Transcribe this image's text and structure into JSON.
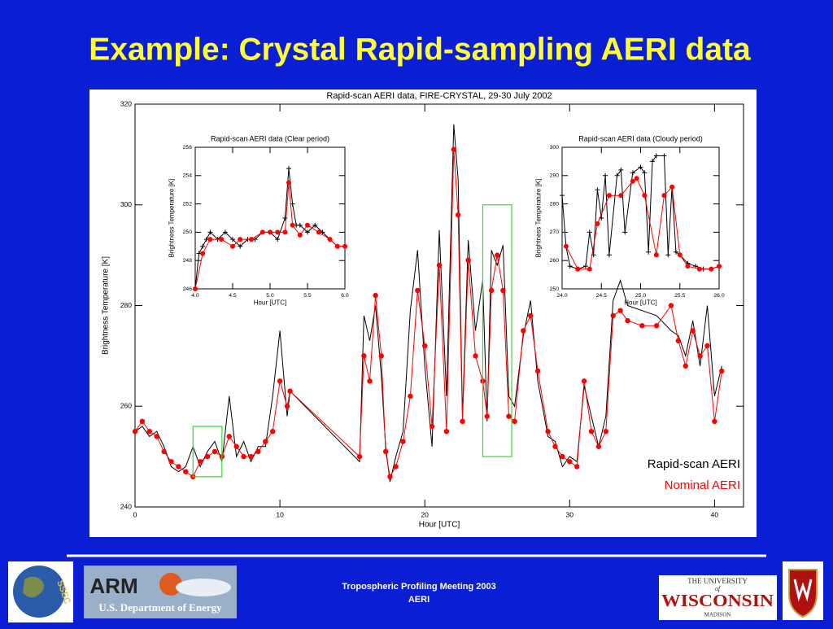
{
  "title": "Example: Crystal Rapid-sampling AERI data",
  "chart_data": [
    {
      "type": "line",
      "title": "Rapid-scan AERI data, FIRE-CRYSTAL, 29-30 July 2002",
      "x_label": "Hour [UTC]",
      "y_label": "Brightness Temperature [K]",
      "xlim": [
        0,
        42
      ],
      "ylim": [
        240,
        320
      ],
      "xticks": [
        0,
        10,
        20,
        30,
        40
      ],
      "yticks": [
        240,
        260,
        280,
        300,
        320
      ],
      "legend": "lower right",
      "x": [
        0,
        0.5,
        1,
        1.5,
        2,
        2.5,
        3,
        3.5,
        4,
        4.5,
        5,
        5.5,
        6,
        6.5,
        7,
        7.5,
        8,
        8.5,
        9,
        9.5,
        10,
        10.5,
        10.7,
        15.5,
        15.8,
        16.2,
        16.6,
        17,
        17.3,
        17.6,
        18,
        18.5,
        19,
        19.5,
        20,
        20.5,
        21,
        21.5,
        22,
        22.3,
        22.6,
        23,
        23.5,
        24,
        24.3,
        24.6,
        25,
        25.4,
        25.8,
        26.2,
        26.8,
        27.3,
        27.8,
        28.5,
        29,
        29.5,
        30,
        30.5,
        31,
        31.5,
        32,
        32.5,
        33,
        33.5,
        34,
        35,
        36,
        37,
        37.5,
        38,
        38.5,
        39,
        39.5,
        40,
        40.5
      ],
      "series": [
        {
          "name": "Rapid-scan AERI",
          "color": "#000000",
          "marker": "none",
          "values": [
            255,
            256,
            254,
            255,
            252,
            248,
            247,
            248,
            252,
            248,
            251,
            253,
            249,
            262,
            250,
            253,
            249,
            252,
            252,
            262,
            275,
            258,
            263,
            249,
            278,
            273,
            280,
            266,
            252,
            245,
            250,
            255,
            279,
            291,
            268,
            252,
            295,
            262,
            316,
            305,
            258,
            293,
            275,
            285,
            257,
            291,
            288,
            292,
            262,
            260,
            274,
            281,
            265,
            254,
            253,
            248,
            250,
            249,
            264,
            258,
            252,
            258,
            281,
            285,
            280,
            279,
            278,
            275,
            274,
            270,
            277,
            268,
            280,
            262,
            268
          ]
        },
        {
          "name": "Nominal AERI",
          "color": "#ff0000",
          "marker": "circle",
          "values": [
            255,
            257,
            255,
            254,
            251,
            249,
            248,
            247,
            246,
            249,
            250,
            251,
            250,
            254,
            252,
            250,
            250,
            251,
            253,
            255,
            265,
            260,
            263,
            250,
            270,
            265,
            282,
            270,
            251,
            246,
            248,
            253,
            262,
            283,
            272,
            256,
            288,
            255,
            311,
            298,
            257,
            289,
            270,
            265,
            258,
            283,
            290,
            283,
            258,
            257,
            275,
            278,
            267,
            255,
            252,
            250,
            249,
            248,
            265,
            255,
            252,
            255,
            278,
            279,
            277,
            276,
            276,
            280,
            273,
            268,
            275,
            270,
            272,
            257,
            267
          ]
        }
      ]
    },
    {
      "type": "line",
      "title": "Rapid-scan AERI data (Clear period)",
      "x_label": "Hour [UTC]",
      "y_label": "Brightness Temperature [K]",
      "xlim": [
        4,
        6
      ],
      "ylim": [
        246,
        256
      ],
      "xticks": [
        {
          "value": 4,
          "label": "4.0"
        },
        4.5,
        {
          "value": 5,
          "label": "5.0"
        },
        5.5,
        {
          "value": 6,
          "label": "6.0"
        }
      ],
      "yticks": [
        246,
        248,
        250,
        252,
        254,
        256
      ],
      "series": [
        {
          "color": "#000000",
          "marker": "plus",
          "x": [
            4.0,
            4.05,
            4.1,
            4.15,
            4.2,
            4.3,
            4.4,
            4.5,
            4.6,
            4.7,
            4.8,
            4.9,
            5.0,
            5.1,
            5.2,
            5.25,
            5.3,
            5.35,
            5.4,
            5.5,
            5.6,
            5.7,
            5.8,
            5.9,
            6.0
          ],
          "values": [
            246,
            248.5,
            249,
            249.5,
            250,
            249.5,
            250,
            249.5,
            249,
            249.5,
            249.5,
            250,
            250,
            249.5,
            251,
            254.5,
            252,
            250.5,
            250.5,
            250,
            250.5,
            250,
            249.5,
            249,
            249
          ]
        },
        {
          "color": "#ff0000",
          "marker": "circle",
          "x": [
            4.0,
            4.1,
            4.2,
            4.35,
            4.5,
            4.6,
            4.75,
            4.9,
            5.0,
            5.1,
            5.2,
            5.25,
            5.3,
            5.4,
            5.5,
            5.65,
            5.8,
            5.9,
            6.0
          ],
          "values": [
            246,
            248.5,
            249.5,
            249.5,
            249,
            249.5,
            249.5,
            250,
            250,
            250,
            250,
            253.5,
            250.5,
            249.8,
            250.5,
            250,
            249.5,
            249,
            249
          ]
        }
      ]
    },
    {
      "type": "line",
      "title": "Rapid-scan AERI data (Cloudy period)",
      "x_label": "Hour [UTC]",
      "y_label": "Brightness Temperature [K]",
      "xlim": [
        24,
        26
      ],
      "ylim": [
        250,
        300
      ],
      "xticks": [
        {
          "value": 24,
          "label": "24.0"
        },
        24.5,
        {
          "value": 25,
          "label": "25.0"
        },
        25.5,
        {
          "value": 26,
          "label": "26.0"
        }
      ],
      "yticks": [
        250,
        260,
        270,
        280,
        290,
        300
      ],
      "series": [
        {
          "color": "#000000",
          "marker": "plus",
          "x": [
            24,
            24.05,
            24.1,
            24.2,
            24.3,
            24.35,
            24.4,
            24.45,
            24.5,
            24.55,
            24.6,
            24.7,
            24.75,
            24.8,
            24.9,
            25.0,
            25.05,
            25.1,
            25.15,
            25.2,
            25.3,
            25.35,
            25.4,
            25.45,
            25.5,
            25.6,
            25.7,
            25.8,
            25.9,
            26.0
          ],
          "values": [
            283,
            265,
            258,
            257,
            258,
            270,
            262,
            285,
            275,
            290,
            262,
            290,
            292,
            270,
            291,
            293,
            291,
            263,
            295,
            297,
            297,
            262,
            286,
            263,
            262,
            259,
            258,
            257,
            257,
            258
          ]
        },
        {
          "color": "#ff0000",
          "marker": "circle",
          "x": [
            24.05,
            24.2,
            24.35,
            24.45,
            24.6,
            24.75,
            24.9,
            24.95,
            25.05,
            25.2,
            25.3,
            25.4,
            25.5,
            25.6,
            25.75,
            25.9,
            26.0
          ],
          "values": [
            265,
            257,
            257,
            273,
            283,
            283,
            288,
            289,
            283,
            262,
            283,
            286,
            262,
            258,
            257,
            257,
            258
          ]
        }
      ]
    }
  ],
  "footer": {
    "lines": [
      "Tropospheric Profiling Meeting 2003",
      "AERI"
    ]
  },
  "logos": {
    "ssec": "SSEC",
    "arm": "ARM",
    "doe": "U.S. Department of Energy",
    "uw": [
      "THE UNIVERSITY",
      "of",
      "WISCONSIN",
      "MADISON"
    ]
  }
}
